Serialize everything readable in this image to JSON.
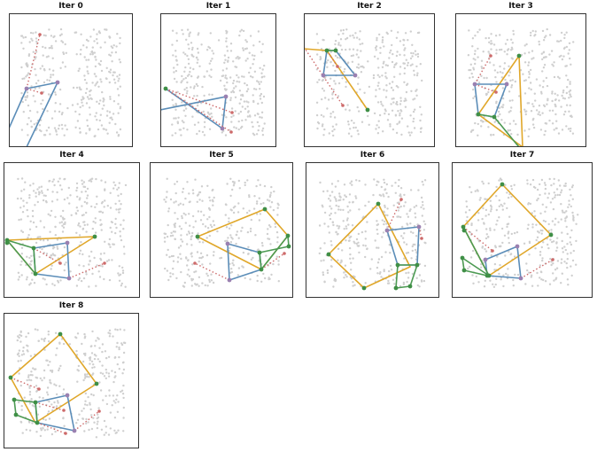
{
  "figure": {
    "panels": [
      {
        "title": "Iter 0"
      },
      {
        "title": "Iter 1"
      },
      {
        "title": "Iter 2"
      },
      {
        "title": "Iter 3"
      },
      {
        "title": "Iter 4"
      },
      {
        "title": "Iter 5"
      },
      {
        "title": "Iter 6"
      },
      {
        "title": "Iter 7"
      },
      {
        "title": "Iter 8"
      }
    ]
  },
  "colors": {
    "background_points": "#cfcfcf",
    "blue_polygon": "#5b8db8",
    "orange_polygon": "#e0a72a",
    "green_polygon": "#4c9a52",
    "green_node": "#3f8f46",
    "purple_node": "#9a80b0",
    "red_dotted": "#cd6a6a",
    "panel_border": "#333333"
  }
}
